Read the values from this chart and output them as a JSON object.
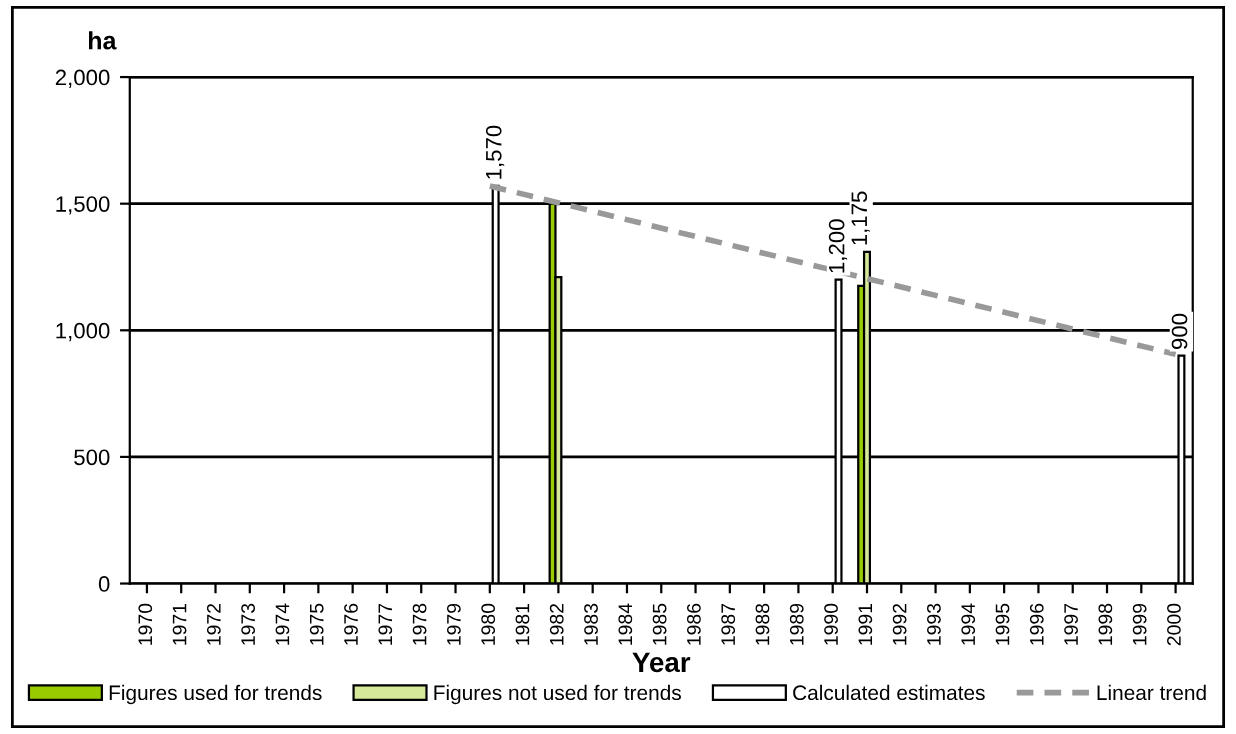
{
  "chart_data": {
    "type": "bar",
    "xlabel": "Year",
    "ylabel": "ha",
    "categories": [
      "1970",
      "1971",
      "1972",
      "1973",
      "1974",
      "1975",
      "1976",
      "1977",
      "1978",
      "1979",
      "1980",
      "1981",
      "1982",
      "1983",
      "1984",
      "1985",
      "1986",
      "1987",
      "1988",
      "1989",
      "1990",
      "1991",
      "1992",
      "1993",
      "1994",
      "1995",
      "1996",
      "1997",
      "1998",
      "1999",
      "2000"
    ],
    "series": [
      {
        "name": "Figures used for trends",
        "color": "#99cc00",
        "values": [
          null,
          null,
          null,
          null,
          null,
          null,
          null,
          null,
          null,
          null,
          null,
          null,
          1500,
          null,
          null,
          null,
          null,
          null,
          null,
          null,
          null,
          1175,
          null,
          null,
          null,
          null,
          null,
          null,
          null,
          null,
          null
        ],
        "value_labels": [
          null,
          null,
          null,
          null,
          null,
          null,
          null,
          null,
          null,
          null,
          null,
          null,
          null,
          null,
          null,
          null,
          null,
          null,
          null,
          null,
          null,
          "1,175",
          null,
          null,
          null,
          null,
          null,
          null,
          null,
          null,
          null
        ]
      },
      {
        "name": "Figures not used for trends",
        "color": "#d6e899",
        "values": [
          null,
          null,
          null,
          null,
          null,
          null,
          null,
          null,
          null,
          null,
          null,
          null,
          1210,
          null,
          null,
          null,
          null,
          null,
          null,
          null,
          null,
          1310,
          null,
          null,
          null,
          null,
          null,
          null,
          null,
          null,
          null
        ]
      },
      {
        "name": "Calculated estimates",
        "color": "#ffffff",
        "values": [
          null,
          null,
          null,
          null,
          null,
          null,
          null,
          null,
          null,
          null,
          1570,
          null,
          null,
          null,
          null,
          null,
          null,
          null,
          null,
          null,
          1200,
          null,
          null,
          null,
          null,
          null,
          null,
          null,
          null,
          null,
          900
        ],
        "value_labels": [
          null,
          null,
          null,
          null,
          null,
          null,
          null,
          null,
          null,
          null,
          "1,570",
          null,
          null,
          null,
          null,
          null,
          null,
          null,
          null,
          null,
          "1,200",
          null,
          null,
          null,
          null,
          null,
          null,
          null,
          null,
          null,
          "900"
        ]
      },
      {
        "name": "Linear trend",
        "type": "line",
        "color": "#999999",
        "line_style": "dashed",
        "values": [
          null,
          null,
          null,
          null,
          null,
          null,
          null,
          null,
          null,
          null,
          1570,
          null,
          null,
          null,
          null,
          null,
          null,
          null,
          null,
          null,
          null,
          null,
          null,
          null,
          null,
          null,
          null,
          null,
          null,
          null,
          905
        ]
      }
    ],
    "ylim": [
      0,
      2000
    ],
    "yticks": [
      {
        "value": 0,
        "label": "0"
      },
      {
        "value": 500,
        "label": "500"
      },
      {
        "value": 1000,
        "label": "1,000"
      },
      {
        "value": 1500,
        "label": "1,500"
      },
      {
        "value": 2000,
        "label": "2,000"
      }
    ],
    "grid": "y",
    "legend": "bottom"
  }
}
